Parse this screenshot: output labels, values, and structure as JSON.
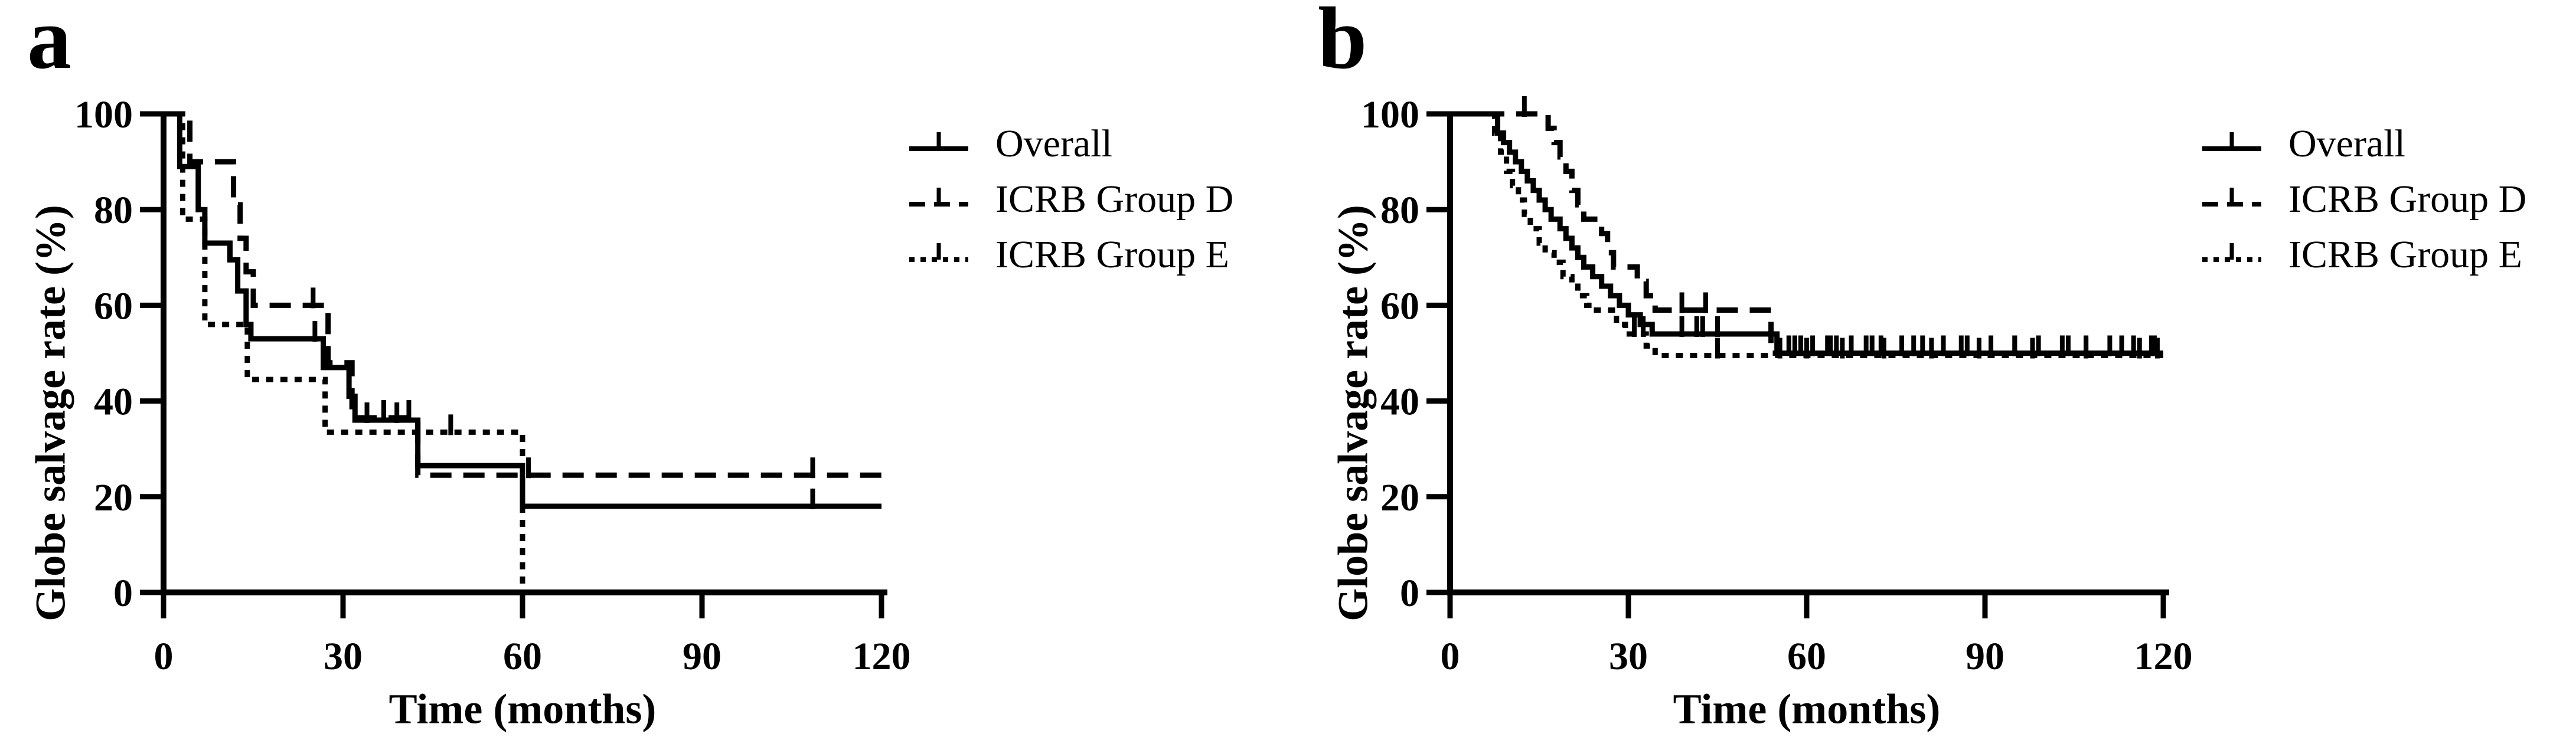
{
  "figure": {
    "background": "#ffffff",
    "ink": "#000000"
  },
  "chart_data": [
    {
      "panel_label": "a",
      "type": "line",
      "subtype": "kaplan_meier_step",
      "title": "",
      "xlabel": "Time (months)",
      "ylabel": "Globe salvage rate (%)",
      "xlim": [
        0,
        120
      ],
      "ylim": [
        0,
        100
      ],
      "x_ticks": [
        0,
        30,
        60,
        90,
        120
      ],
      "y_ticks": [
        100,
        80,
        60,
        40,
        20,
        0
      ],
      "grid": false,
      "legend_position": "right-top",
      "series": [
        {
          "name": "Overall",
          "style": "solid",
          "steps": [
            [
              0,
              100
            ],
            [
              2.7,
              89
            ],
            [
              5.8,
              80
            ],
            [
              6.9,
              73
            ],
            [
              11.1,
              69.5
            ],
            [
              12.4,
              63
            ],
            [
              13.8,
              56
            ],
            [
              14.6,
              53
            ],
            [
              26.7,
              47
            ],
            [
              31,
              41
            ],
            [
              32,
              36
            ],
            [
              42.5,
              26.5
            ],
            [
              60,
              18
            ]
          ],
          "end_x": 120,
          "censor_marks": [
            [
              25.3,
              53
            ],
            [
              34,
              36
            ],
            [
              39,
              36
            ],
            [
              108.5,
              18
            ]
          ]
        },
        {
          "name": "ICRB Group D",
          "style": "dashed",
          "steps": [
            [
              0,
              100
            ],
            [
              4.4,
              90
            ],
            [
              11.7,
              81
            ],
            [
              12.8,
              74
            ],
            [
              13.8,
              67
            ],
            [
              15,
              60
            ],
            [
              27.5,
              48
            ],
            [
              31.5,
              36.5
            ],
            [
              42.5,
              24.5
            ]
          ],
          "end_x": 120,
          "censor_marks": [
            [
              25,
              60
            ],
            [
              36.8,
              36.5
            ],
            [
              41,
              36.5
            ],
            [
              61,
              24.5
            ],
            [
              108.5,
              24.5
            ]
          ]
        },
        {
          "name": "ICRB Group E",
          "style": "dotted",
          "steps": [
            [
              0,
              100
            ],
            [
              3.2,
              78
            ],
            [
              6.9,
              56
            ],
            [
              14,
              44.5
            ],
            [
              27,
              33.5
            ],
            [
              60,
              0
            ]
          ],
          "end_x": 60,
          "censor_marks": [
            [
              48,
              33.5
            ]
          ]
        }
      ]
    },
    {
      "panel_label": "b",
      "type": "line",
      "subtype": "kaplan_meier_step",
      "title": "",
      "xlabel": "Time (months)",
      "ylabel": "Globe salvage rate (%)",
      "xlim": [
        0,
        120
      ],
      "ylim": [
        0,
        100
      ],
      "x_ticks": [
        0,
        30,
        60,
        90,
        120
      ],
      "y_ticks": [
        100,
        80,
        60,
        40,
        20,
        0
      ],
      "grid": false,
      "legend_position": "right-top",
      "series": [
        {
          "name": "Overall",
          "style": "solid",
          "steps": [
            [
              0,
              100
            ],
            [
              8,
              96
            ],
            [
              9,
              94
            ],
            [
              10,
              92
            ],
            [
              11,
              90
            ],
            [
              12,
              88
            ],
            [
              13,
              86
            ],
            [
              14,
              84
            ],
            [
              15,
              82
            ],
            [
              16,
              80
            ],
            [
              17,
              78
            ],
            [
              18.5,
              76
            ],
            [
              19.5,
              74
            ],
            [
              20.5,
              72
            ],
            [
              21.5,
              70
            ],
            [
              22.5,
              68
            ],
            [
              24,
              66
            ],
            [
              25.5,
              64
            ],
            [
              27,
              62
            ],
            [
              28.5,
              60
            ],
            [
              30,
              58
            ],
            [
              32,
              56
            ],
            [
              34,
              54
            ],
            [
              55,
              50
            ]
          ],
          "end_x": 120,
          "censor_marks": [
            [
              39,
              54
            ],
            [
              41.5,
              54
            ],
            [
              42.5,
              54
            ],
            [
              45,
              54
            ],
            [
              57,
              50
            ],
            [
              59,
              50
            ],
            [
              61,
              50
            ],
            [
              63.5,
              50
            ],
            [
              65,
              50
            ],
            [
              67.5,
              50
            ],
            [
              70,
              50
            ],
            [
              72.5,
              50
            ],
            [
              76,
              50
            ],
            [
              79.5,
              50
            ],
            [
              83,
              50
            ],
            [
              87,
              50
            ],
            [
              91,
              50
            ],
            [
              95,
              50
            ],
            [
              99,
              50
            ],
            [
              103,
              50
            ],
            [
              107,
              50
            ],
            [
              111,
              50
            ],
            [
              115,
              50
            ],
            [
              118.5,
              50
            ]
          ]
        },
        {
          "name": "ICRB Group D",
          "style": "dashed",
          "steps": [
            [
              0,
              100
            ],
            [
              16.5,
              97
            ],
            [
              17.5,
              94
            ],
            [
              18.5,
              91
            ],
            [
              19.5,
              88
            ],
            [
              20.5,
              84
            ],
            [
              21.5,
              81
            ],
            [
              22.5,
              78
            ],
            [
              25.5,
              75
            ],
            [
              26.5,
              71
            ],
            [
              27.5,
              68
            ],
            [
              31.5,
              65
            ],
            [
              33,
              62
            ],
            [
              34.5,
              59
            ],
            [
              54,
              50
            ]
          ],
          "end_x": 120,
          "censor_marks": [
            [
              12.5,
              100
            ],
            [
              39,
              59
            ],
            [
              43,
              59
            ],
            [
              58,
              50
            ],
            [
              64,
              50
            ],
            [
              71,
              50
            ],
            [
              78,
              50
            ],
            [
              86,
              50
            ],
            [
              95,
              50
            ],
            [
              104,
              50
            ],
            [
              113,
              50
            ],
            [
              118,
              50
            ]
          ]
        },
        {
          "name": "ICRB Group E",
          "style": "dotted",
          "steps": [
            [
              0,
              100
            ],
            [
              7.5,
              96
            ],
            [
              8.5,
              92
            ],
            [
              9.5,
              88
            ],
            [
              10.5,
              85
            ],
            [
              11.5,
              82
            ],
            [
              12.5,
              79
            ],
            [
              13.5,
              76
            ],
            [
              15,
              73
            ],
            [
              16,
              71
            ],
            [
              17.5,
              69
            ],
            [
              19,
              66
            ],
            [
              20.5,
              64
            ],
            [
              21.5,
              62
            ],
            [
              23,
              60
            ],
            [
              24,
              59
            ],
            [
              28,
              56
            ],
            [
              29.5,
              54
            ],
            [
              33,
              51.5
            ],
            [
              34.5,
              49.5
            ]
          ],
          "end_x": 120,
          "censor_marks": [
            [
              31,
              54
            ],
            [
              32.5,
              54
            ],
            [
              45,
              49.5
            ],
            [
              55.5,
              49.5
            ],
            [
              60,
              49.5
            ],
            [
              66,
              49.5
            ],
            [
              73,
              49.5
            ],
            [
              81,
              49.5
            ],
            [
              89,
              49.5
            ],
            [
              98,
              49.5
            ],
            [
              107,
              49.5
            ],
            [
              116,
              49.5
            ],
            [
              119,
              49.5
            ]
          ]
        }
      ]
    }
  ]
}
